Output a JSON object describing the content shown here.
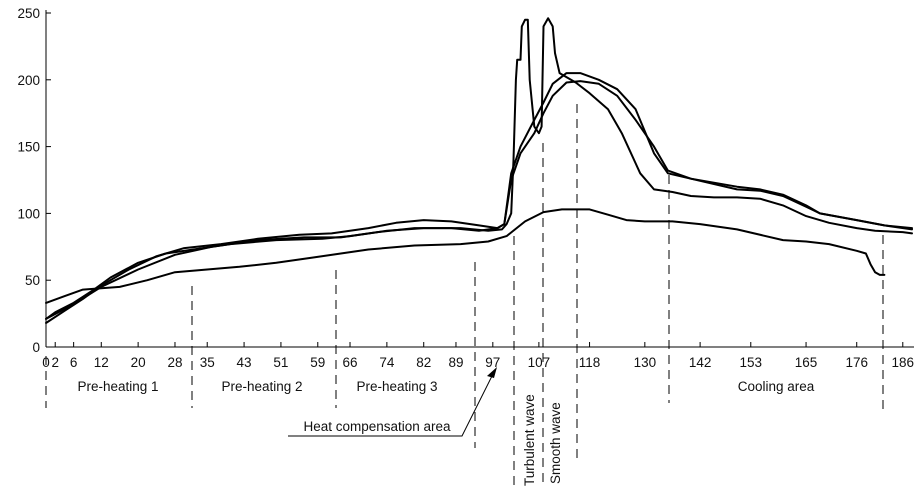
{
  "chart_data": {
    "type": "line",
    "title": "",
    "xlabel": "",
    "ylabel": "",
    "xlim": [
      0,
      188
    ],
    "ylim": [
      0,
      250
    ],
    "x_ticks": [
      0,
      2,
      6,
      12,
      20,
      28,
      35,
      43,
      51,
      59,
      66,
      74,
      82,
      89,
      97,
      107,
      118,
      130,
      142,
      153,
      165,
      176,
      186
    ],
    "y_ticks": [
      0,
      50,
      100,
      150,
      200,
      250
    ],
    "grid": false,
    "legend": "none",
    "series": [
      {
        "points": [
          [
            0,
            21
          ],
          [
            2,
            26
          ],
          [
            6,
            33
          ],
          [
            10,
            42
          ],
          [
            14,
            52
          ],
          [
            20,
            63
          ],
          [
            26,
            70
          ],
          [
            32,
            73
          ],
          [
            40,
            77
          ],
          [
            50,
            80
          ],
          [
            60,
            81
          ],
          [
            66,
            83
          ],
          [
            74,
            87
          ],
          [
            82,
            89
          ],
          [
            90,
            89
          ],
          [
            96,
            87
          ],
          [
            99,
            88
          ],
          [
            100,
            92
          ],
          [
            101,
            100
          ],
          [
            101.5,
            140
          ],
          [
            102,
            200
          ],
          [
            102.3,
            215
          ],
          [
            103,
            215
          ],
          [
            103.3,
            240
          ],
          [
            104,
            245
          ],
          [
            104.6,
            245
          ],
          [
            105,
            200
          ],
          [
            106,
            165
          ],
          [
            107,
            160
          ],
          [
            107.6,
            165
          ],
          [
            108,
            240
          ],
          [
            109,
            246
          ],
          [
            110,
            240
          ],
          [
            110.5,
            220
          ],
          [
            111.5,
            205
          ],
          [
            115,
            198
          ],
          [
            118,
            190
          ],
          [
            122,
            178
          ],
          [
            125,
            160
          ],
          [
            129,
            130
          ],
          [
            132,
            118
          ],
          [
            136,
            116
          ],
          [
            140,
            113
          ],
          [
            145,
            112
          ],
          [
            150,
            112
          ],
          [
            155,
            111
          ],
          [
            160,
            106
          ],
          [
            165,
            98
          ],
          [
            170,
            93
          ],
          [
            176,
            89
          ],
          [
            180,
            87
          ],
          [
            186,
            86
          ],
          [
            188,
            85
          ]
        ]
      },
      {
        "points": [
          [
            0,
            18
          ],
          [
            4,
            27
          ],
          [
            8,
            36
          ],
          [
            12,
            46
          ],
          [
            18,
            58
          ],
          [
            24,
            68
          ],
          [
            30,
            74
          ],
          [
            38,
            77
          ],
          [
            46,
            81
          ],
          [
            55,
            84
          ],
          [
            62,
            85
          ],
          [
            70,
            89
          ],
          [
            76,
            93
          ],
          [
            82,
            95
          ],
          [
            88,
            94
          ],
          [
            94,
            91
          ],
          [
            98,
            89
          ],
          [
            99.5,
            92
          ],
          [
            101,
            130
          ],
          [
            103,
            150
          ],
          [
            106,
            170
          ],
          [
            108,
            183
          ],
          [
            110,
            197
          ],
          [
            113,
            205
          ],
          [
            116,
            205
          ],
          [
            120,
            200
          ],
          [
            124,
            193
          ],
          [
            128,
            178
          ],
          [
            132,
            145
          ],
          [
            135,
            130
          ],
          [
            140,
            126
          ],
          [
            150,
            120
          ],
          [
            155,
            118
          ],
          [
            160,
            114
          ],
          [
            165,
            106
          ],
          [
            168,
            100
          ],
          [
            176,
            95
          ],
          [
            182,
            91
          ],
          [
            188,
            88
          ]
        ]
      },
      {
        "points": [
          [
            0,
            21
          ],
          [
            6,
            32
          ],
          [
            12,
            45
          ],
          [
            20,
            58
          ],
          [
            28,
            69
          ],
          [
            36,
            75
          ],
          [
            46,
            80
          ],
          [
            56,
            82
          ],
          [
            64,
            82
          ],
          [
            72,
            86
          ],
          [
            80,
            89
          ],
          [
            88,
            89
          ],
          [
            94,
            87
          ],
          [
            98,
            89
          ],
          [
            99.5,
            92
          ],
          [
            101,
            125
          ],
          [
            103,
            145
          ],
          [
            106,
            160
          ],
          [
            108,
            175
          ],
          [
            110,
            188
          ],
          [
            113,
            198
          ],
          [
            116,
            199
          ],
          [
            120,
            197
          ],
          [
            124,
            188
          ],
          [
            128,
            170
          ],
          [
            132,
            150
          ],
          [
            135,
            132
          ],
          [
            140,
            126
          ],
          [
            150,
            118
          ],
          [
            155,
            117
          ],
          [
            160,
            113
          ],
          [
            165,
            105
          ],
          [
            168,
            100
          ],
          [
            176,
            95
          ],
          [
            182,
            91
          ],
          [
            188,
            89
          ]
        ]
      },
      {
        "points": [
          [
            0,
            33
          ],
          [
            4,
            38
          ],
          [
            8,
            43
          ],
          [
            12,
            44
          ],
          [
            16,
            45
          ],
          [
            22,
            50
          ],
          [
            28,
            56
          ],
          [
            35,
            58
          ],
          [
            42,
            60
          ],
          [
            50,
            63
          ],
          [
            58,
            67
          ],
          [
            64,
            70
          ],
          [
            70,
            73
          ],
          [
            80,
            76
          ],
          [
            90,
            77
          ],
          [
            96,
            79
          ],
          [
            100,
            83
          ],
          [
            104,
            94
          ],
          [
            108,
            101
          ],
          [
            112,
            103
          ],
          [
            118,
            103
          ],
          [
            122,
            99
          ],
          [
            126,
            95
          ],
          [
            130,
            94
          ],
          [
            136,
            94
          ],
          [
            142,
            92
          ],
          [
            150,
            88
          ],
          [
            160,
            80
          ],
          [
            165,
            79
          ],
          [
            170,
            77
          ],
          [
            176,
            72
          ],
          [
            178,
            70
          ],
          [
            179,
            62
          ],
          [
            180,
            56
          ],
          [
            181,
            54
          ],
          [
            182,
            54
          ]
        ]
      }
    ],
    "regions": [
      {
        "label": "Pre-heating 1"
      },
      {
        "label": "Pre-heating 2"
      },
      {
        "label": "Pre-heating 3"
      },
      {
        "label": "Heat compensation area"
      },
      {
        "label": "Turbulent wave"
      },
      {
        "label": "Smooth wave"
      },
      {
        "label": "Cooling area"
      }
    ]
  }
}
